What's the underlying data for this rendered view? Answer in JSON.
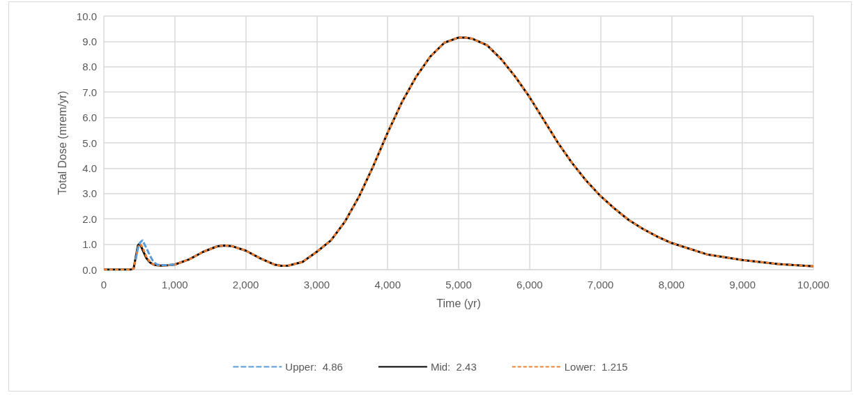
{
  "chart_data": {
    "type": "line",
    "xlabel": "Time (yr)",
    "ylabel": "Total Dose (mrem/yr)",
    "x": [
      0,
      100,
      200,
      300,
      380,
      420,
      450,
      480,
      500,
      520,
      550,
      600,
      650,
      700,
      750,
      800,
      900,
      1000,
      1200,
      1400,
      1600,
      1700,
      1800,
      2000,
      2200,
      2400,
      2500,
      2600,
      2800,
      3000,
      3200,
      3400,
      3600,
      3800,
      4000,
      4200,
      4400,
      4600,
      4800,
      5000,
      5100,
      5200,
      5400,
      5600,
      5800,
      6000,
      6200,
      6400,
      6600,
      6800,
      7000,
      7200,
      7400,
      7600,
      7800,
      8000,
      8500,
      9000,
      9500,
      10000
    ],
    "series": [
      {
        "name": "Upper:  4.86",
        "color": "#5b9bd5",
        "line_style": "dashed",
        "x": [
          450,
          480,
          500,
          520,
          545,
          600,
          650,
          700,
          750,
          800,
          900,
          1000
        ],
        "values": [
          0.4,
          0.85,
          1.0,
          1.1,
          1.15,
          0.85,
          0.55,
          0.3,
          0.2,
          0.18,
          0.18,
          0.2
        ]
      },
      {
        "name": "Mid:  2.43",
        "color": "#000000",
        "line_style": "solid",
        "values": [
          0,
          0,
          0,
          0,
          0,
          0.05,
          0.5,
          0.95,
          1.02,
          0.95,
          0.75,
          0.45,
          0.28,
          0.2,
          0.17,
          0.16,
          0.17,
          0.2,
          0.4,
          0.7,
          0.92,
          0.95,
          0.93,
          0.75,
          0.45,
          0.2,
          0.15,
          0.16,
          0.3,
          0.7,
          1.15,
          1.9,
          2.9,
          4.1,
          5.4,
          6.6,
          7.6,
          8.4,
          8.95,
          9.15,
          9.15,
          9.1,
          8.85,
          8.3,
          7.6,
          6.8,
          5.9,
          5.0,
          4.2,
          3.5,
          2.9,
          2.4,
          1.95,
          1.6,
          1.3,
          1.05,
          0.6,
          0.38,
          0.22,
          0.13
        ]
      },
      {
        "name": "Lower:  1.215",
        "color": "#ed7d31",
        "line_style": "dotted",
        "values": [
          0,
          0,
          0,
          0,
          0,
          0.05,
          0.45,
          0.85,
          1.0,
          0.98,
          0.85,
          0.5,
          0.3,
          0.2,
          0.17,
          0.16,
          0.17,
          0.2,
          0.4,
          0.7,
          0.92,
          0.95,
          0.93,
          0.75,
          0.45,
          0.2,
          0.15,
          0.16,
          0.3,
          0.7,
          1.15,
          1.9,
          2.9,
          4.1,
          5.4,
          6.6,
          7.6,
          8.4,
          8.95,
          9.15,
          9.15,
          9.1,
          8.85,
          8.3,
          7.6,
          6.8,
          5.9,
          5.0,
          4.2,
          3.5,
          2.9,
          2.4,
          1.95,
          1.6,
          1.3,
          1.05,
          0.6,
          0.38,
          0.22,
          0.13
        ]
      }
    ],
    "xlim": [
      0,
      10000
    ],
    "xticks": [
      {
        "value": 0,
        "label": "0"
      },
      {
        "value": 1000,
        "label": "1,000"
      },
      {
        "value": 2000,
        "label": "2,000"
      },
      {
        "value": 3000,
        "label": "3,000"
      },
      {
        "value": 4000,
        "label": "4,000"
      },
      {
        "value": 5000,
        "label": "5,000"
      },
      {
        "value": 6000,
        "label": "6,000"
      },
      {
        "value": 7000,
        "label": "7,000"
      },
      {
        "value": 8000,
        "label": "8,000"
      },
      {
        "value": 9000,
        "label": "9,000"
      },
      {
        "value": 10000,
        "label": "10,000"
      }
    ],
    "ylim": [
      0,
      10
    ],
    "yticks": [
      {
        "value": 0,
        "label": "0.0"
      },
      {
        "value": 1,
        "label": "1.0"
      },
      {
        "value": 2,
        "label": "2.0"
      },
      {
        "value": 3,
        "label": "3.0"
      },
      {
        "value": 4,
        "label": "4.0"
      },
      {
        "value": 5,
        "label": "5.0"
      },
      {
        "value": 6,
        "label": "6.0"
      },
      {
        "value": 7,
        "label": "7.0"
      },
      {
        "value": 8,
        "label": "8.0"
      },
      {
        "value": 9,
        "label": "9.0"
      },
      {
        "value": 10,
        "label": "10.0"
      }
    ],
    "grid": true,
    "legend": "bottom",
    "marker": "none"
  }
}
